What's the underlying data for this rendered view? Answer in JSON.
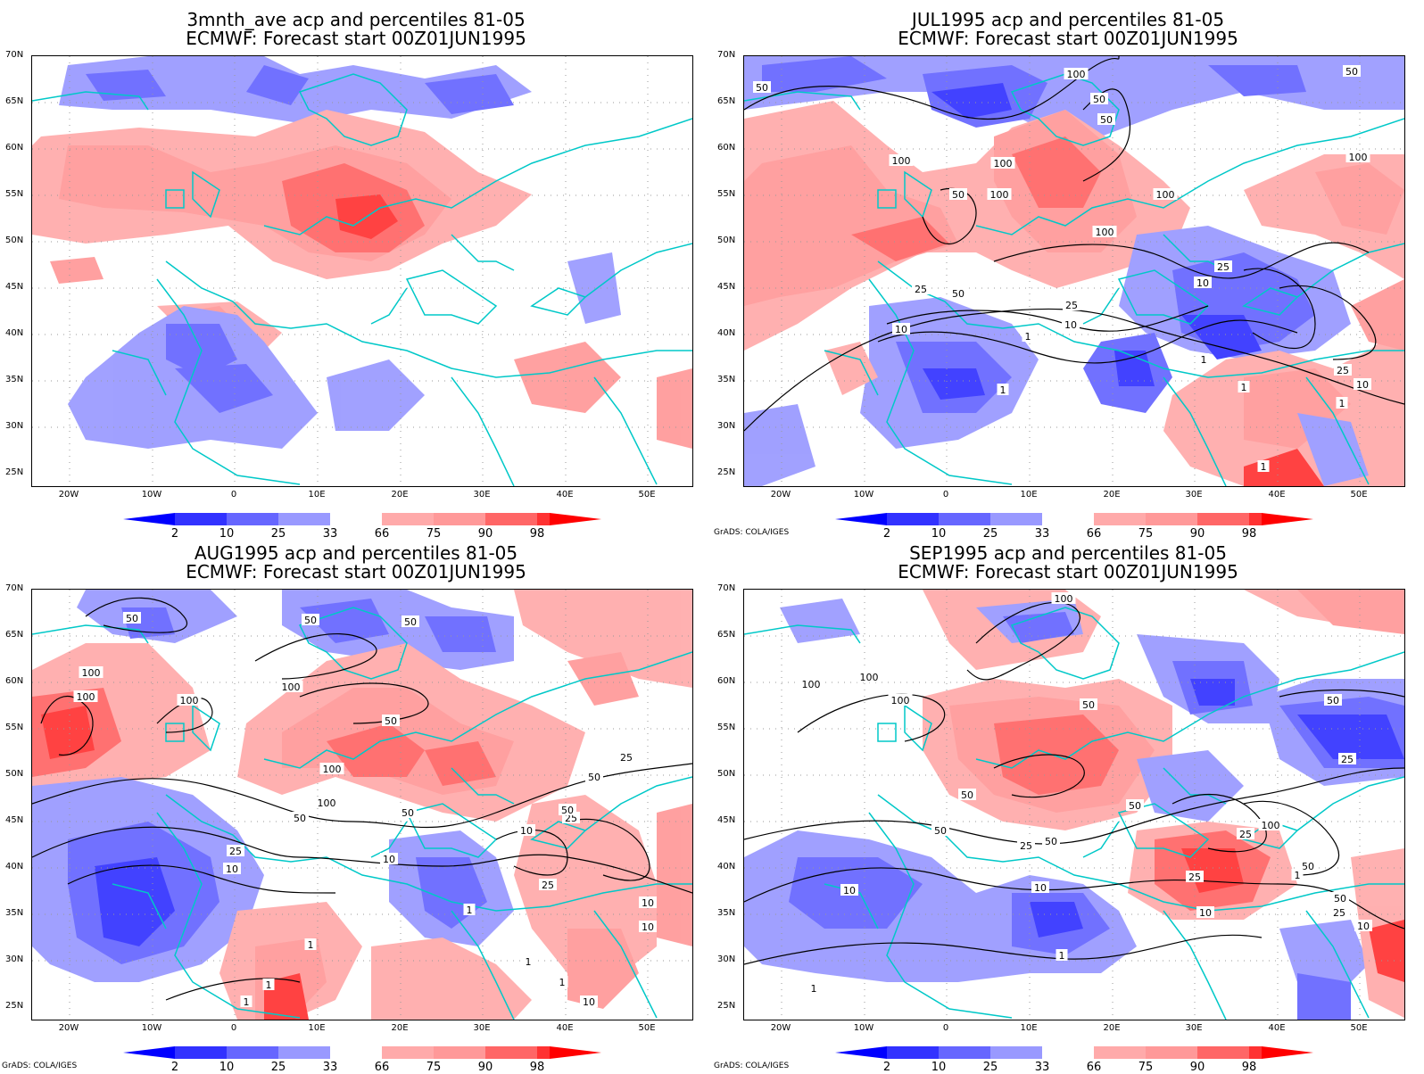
{
  "panels": [
    {
      "title_line1": "3mnth_ave acp and percentiles 81-05",
      "title_line2": "ECMWF: Forecast start 00Z01JUN1995",
      "credit": "",
      "contour_labels": []
    },
    {
      "title_line1": "JUL1995 acp and percentiles 81-05",
      "title_line2": "ECMWF: Forecast start 00Z01JUN1995",
      "credit": "GrADS: COLA/IGES",
      "contour_labels": [
        "50",
        "100",
        "50",
        "50",
        "100",
        "100",
        "100",
        "50",
        "100",
        "100",
        "50",
        "100",
        "25",
        "10",
        "50",
        "25",
        "25",
        "10",
        "10",
        "1",
        "1",
        "1",
        "25",
        "10",
        "1",
        "1",
        "1"
      ]
    },
    {
      "title_line1": "AUG1995 acp and percentiles 81-05",
      "title_line2": "ECMWF: Forecast start 00Z01JUN1995",
      "credit": "GrADS: COLA/IGES",
      "contour_labels": [
        "50",
        "50",
        "50",
        "100",
        "100",
        "100",
        "50",
        "100",
        "100",
        "50",
        "50",
        "25",
        "10",
        "100",
        "50",
        "25",
        "10",
        "25",
        "10",
        "10",
        "50",
        "25",
        "10",
        "1",
        "1",
        "1",
        "1",
        "1",
        "1",
        "10"
      ]
    },
    {
      "title_line1": "SEP1995 acp and percentiles 81-05",
      "title_line2": "ECMWF: Forecast start 00Z01JUN1995",
      "credit": "GrADS: COLA/IGES",
      "contour_labels": [
        "100",
        "100",
        "100",
        "100",
        "50",
        "50",
        "25",
        "50",
        "50",
        "50",
        "100",
        "50",
        "25",
        "50",
        "25",
        "25",
        "10",
        "10",
        "10",
        "1",
        "1",
        "50",
        "25",
        "10",
        "1"
      ]
    }
  ],
  "lat_labels": [
    "70N",
    "65N",
    "60N",
    "55N",
    "50N",
    "45N",
    "40N",
    "35N",
    "30N",
    "25N"
  ],
  "lon_labels": [
    "20W",
    "10W",
    "0",
    "10E",
    "20E",
    "30E",
    "40E",
    "50E"
  ],
  "colorbar": {
    "labels": [
      "2",
      "10",
      "25",
      "33",
      "66",
      "75",
      "90",
      "98"
    ],
    "colors": [
      "#0000ff",
      "#3232ff",
      "#6666ff",
      "#9999ff",
      "#aaaaff",
      "#ffffff",
      "#ffaaaa",
      "#ff9999",
      "#ff6666",
      "#ff3232",
      "#ff0000"
    ]
  },
  "colors": {
    "coast": "#00c8c8",
    "contour": "#000000",
    "grid": "#999999"
  }
}
